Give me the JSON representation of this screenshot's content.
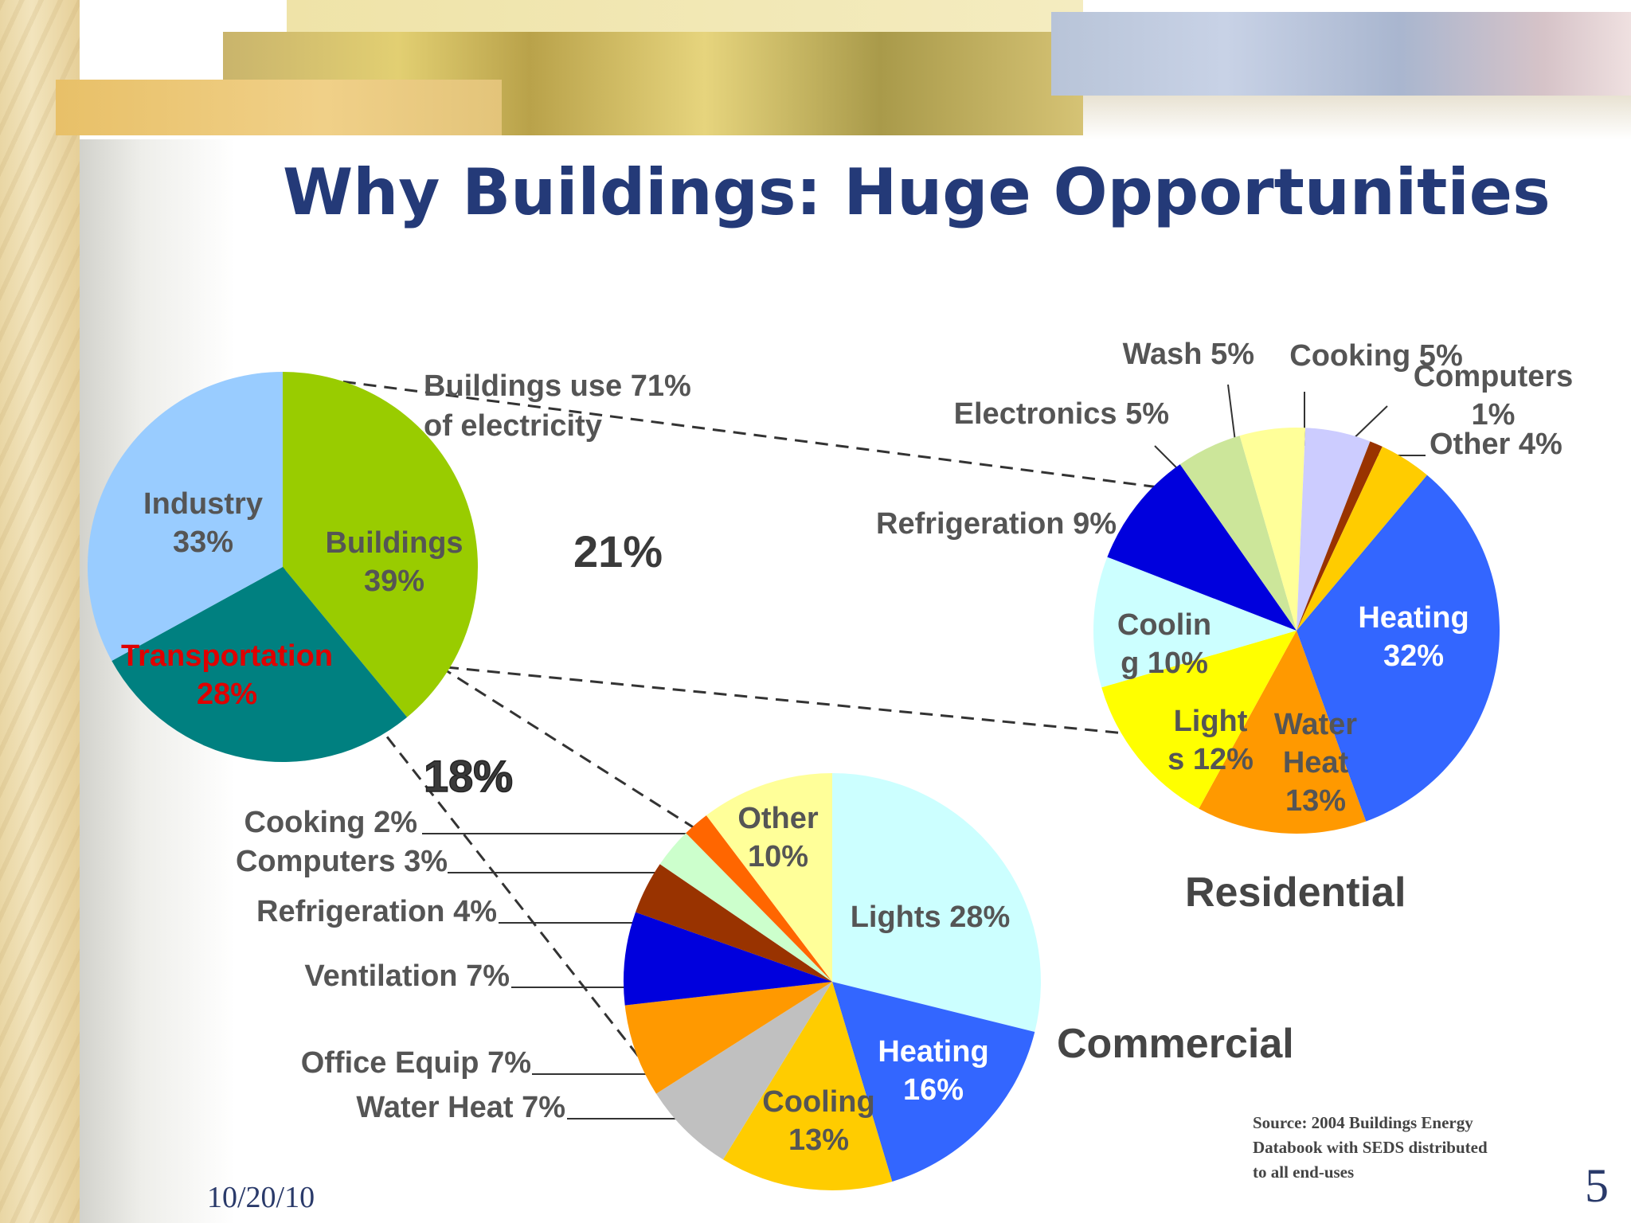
{
  "slide": {
    "title": "Why Buildings: Huge Opportunities",
    "date": "10/20/10",
    "page_number": "5",
    "source": "Source:  2004 Buildings Energy Databook with SEDS distributed to all end-uses"
  },
  "annotations": {
    "electricity_note": [
      "Buildings use 71%",
      "of electricity"
    ],
    "residential_share": "21%",
    "commercial_share": "18%"
  },
  "colors": {
    "leader_line": "#333333",
    "title": "#243a78"
  },
  "chart_data": [
    {
      "type": "pie",
      "title": "",
      "categories": [
        "Buildings",
        "Transportation",
        "Industry"
      ],
      "values": [
        39,
        28,
        33
      ],
      "labels": [
        [
          "Buildings",
          "39%"
        ],
        [
          "Transportation",
          "28%"
        ],
        [
          "Industry",
          "33%"
        ]
      ],
      "colors": [
        "#99cc00",
        "#008080",
        "#99ccff"
      ]
    },
    {
      "type": "pie",
      "title": "Residential",
      "categories": [
        "Heating",
        "Water Heat",
        "Lights",
        "Cooling",
        "Refrigeration",
        "Electronics",
        "Wash",
        "Cooking",
        "Computers",
        "Other"
      ],
      "values": [
        32,
        13,
        12,
        10,
        9,
        5,
        5,
        5,
        1,
        4
      ],
      "labels": [
        [
          "Heating",
          "32%"
        ],
        [
          "Water",
          "Heat",
          "13%"
        ],
        [
          "Light",
          "s 12%"
        ],
        [
          "Coolin",
          "g 10%"
        ],
        [
          "Refrigeration 9%"
        ],
        [
          "Electronics 5%"
        ],
        [
          "Wash 5%"
        ],
        [
          "Cooking 5%"
        ],
        [
          "Computers",
          "1%"
        ],
        [
          "Other 4%"
        ]
      ],
      "colors": [
        "#3366ff",
        "#ff9900",
        "#ffff00",
        "#ccffff",
        "#0000dd",
        "#cce69a",
        "#ffff99",
        "#ccccff",
        "#993300",
        "#ffcc00"
      ]
    },
    {
      "type": "pie",
      "title": "Commercial",
      "categories": [
        "Lights",
        "Heating",
        "Cooling",
        "Water Heat",
        "Office Equip",
        "Ventilation",
        "Refrigeration",
        "Computers",
        "Cooking",
        "Other"
      ],
      "values": [
        28,
        16,
        13,
        7,
        7,
        7,
        4,
        3,
        2,
        10
      ],
      "labels": [
        [
          "Lights 28%"
        ],
        [
          "Heating",
          "16%"
        ],
        [
          "Cooling",
          "13%"
        ],
        [
          "Water Heat 7%"
        ],
        [
          "Office Equip 7%"
        ],
        [
          "Ventilation 7%"
        ],
        [
          "Refrigeration 4%"
        ],
        [
          "Computers 3%"
        ],
        [
          "Cooking 2%"
        ],
        [
          "Other",
          "10%"
        ]
      ],
      "colors": [
        "#ccffff",
        "#3366ff",
        "#ffcc00",
        "#c0c0c0",
        "#ff9900",
        "#0000dd",
        "#993300",
        "#ccffcc",
        "#ff6600",
        "#ffff99"
      ]
    }
  ]
}
